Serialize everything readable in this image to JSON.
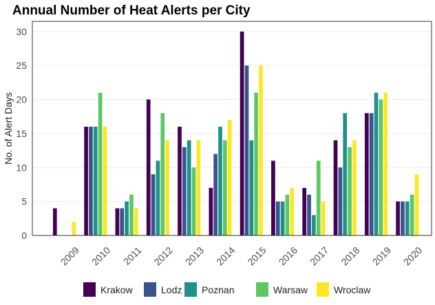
{
  "chart_data": {
    "type": "bar",
    "title": "Annual Number of Heat Alerts per City",
    "xlabel": "",
    "ylabel": "No. of Alert Days",
    "ylim": [
      0,
      31.5
    ],
    "yticks": [
      0,
      5,
      10,
      15,
      20,
      25,
      30
    ],
    "categories": [
      "2009",
      "2010",
      "2011",
      "2012",
      "2013",
      "2014",
      "2015",
      "2016",
      "2017",
      "2018",
      "2019",
      "2020"
    ],
    "series": [
      {
        "name": "Krakow",
        "color": "#440154",
        "values": [
          4,
          16,
          4,
          20,
          16,
          7,
          30,
          11,
          7,
          14,
          18,
          5
        ]
      },
      {
        "name": "Lodz",
        "color": "#3b528b",
        "values": [
          0,
          16,
          4,
          9,
          13,
          12,
          25,
          5,
          6,
          10,
          18,
          5
        ]
      },
      {
        "name": "Poznan",
        "color": "#21908c",
        "values": [
          0,
          16,
          5,
          11,
          14,
          16,
          14,
          5,
          3,
          18,
          21,
          5
        ]
      },
      {
        "name": "Warsaw",
        "color": "#5dc863",
        "values": [
          0,
          21,
          6,
          18,
          10,
          14,
          21,
          6,
          11,
          13,
          20,
          6
        ]
      },
      {
        "name": "Wroclaw",
        "color": "#fde725",
        "values": [
          2,
          16,
          4,
          14,
          14,
          17,
          25,
          7,
          5,
          14,
          21,
          9
        ]
      }
    ],
    "grid": true,
    "legend_position": "bottom"
  }
}
